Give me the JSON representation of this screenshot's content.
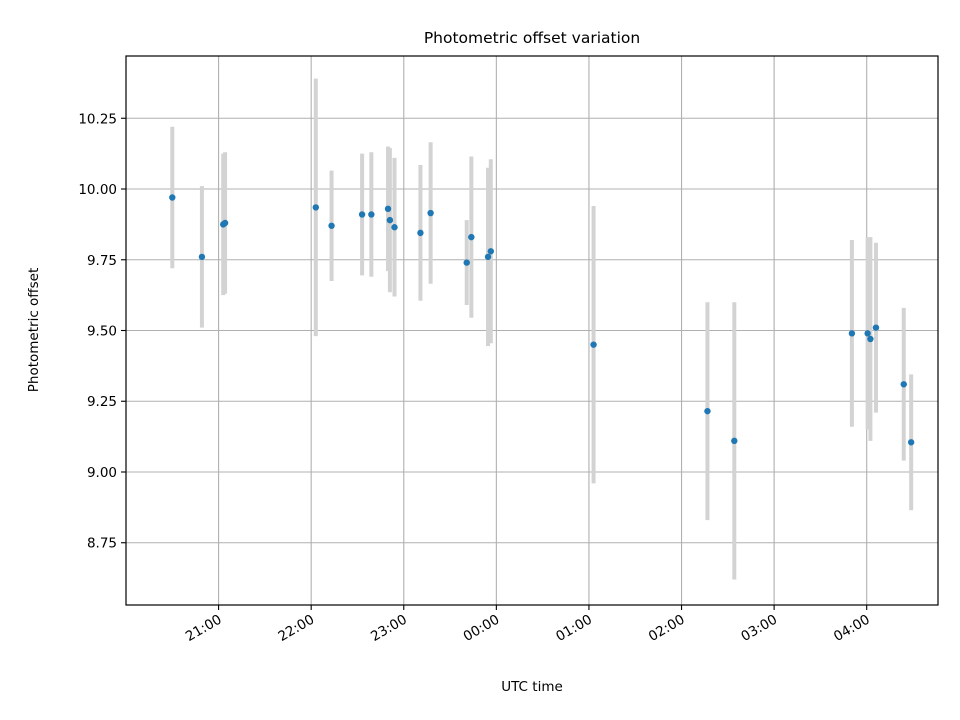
{
  "chart_data": {
    "type": "scatter",
    "title": "Photometric offset variation",
    "xlabel": "UTC time",
    "ylabel": "Photometric offset",
    "x_unit": "hours after 00:00 UTC",
    "xlim": [
      -4.0,
      4.77
    ],
    "ylim": [
      8.53,
      10.47
    ],
    "grid": true,
    "x_ticks": [
      {
        "value": -3.0,
        "label": "21:00"
      },
      {
        "value": -2.0,
        "label": "22:00"
      },
      {
        "value": -1.0,
        "label": "23:00"
      },
      {
        "value": 0.0,
        "label": "00:00"
      },
      {
        "value": 1.0,
        "label": "01:00"
      },
      {
        "value": 2.0,
        "label": "02:00"
      },
      {
        "value": 3.0,
        "label": "03:00"
      },
      {
        "value": 4.0,
        "label": "04:00"
      }
    ],
    "y_ticks": [
      {
        "value": 8.75,
        "label": "8.75"
      },
      {
        "value": 9.0,
        "label": "9.00"
      },
      {
        "value": 9.25,
        "label": "9.25"
      },
      {
        "value": 9.5,
        "label": "9.50"
      },
      {
        "value": 9.75,
        "label": "9.75"
      },
      {
        "value": 10.0,
        "label": "10.00"
      },
      {
        "value": 10.25,
        "label": "10.25"
      }
    ],
    "points": [
      {
        "x": -3.5,
        "y": 9.97,
        "err": 0.25
      },
      {
        "x": -3.18,
        "y": 9.76,
        "err": 0.25
      },
      {
        "x": -2.95,
        "y": 9.875,
        "err": 0.25
      },
      {
        "x": -2.93,
        "y": 9.88,
        "err": 0.25
      },
      {
        "x": -1.95,
        "y": 9.935,
        "err": 0.455
      },
      {
        "x": -1.78,
        "y": 9.87,
        "err": 0.195
      },
      {
        "x": -1.45,
        "y": 9.91,
        "err": 0.215
      },
      {
        "x": -1.35,
        "y": 9.91,
        "err": 0.22
      },
      {
        "x": -1.17,
        "y": 9.93,
        "err": 0.22
      },
      {
        "x": -1.15,
        "y": 9.89,
        "err": 0.255
      },
      {
        "x": -1.1,
        "y": 9.865,
        "err": 0.245
      },
      {
        "x": -0.82,
        "y": 9.845,
        "err": 0.24
      },
      {
        "x": -0.71,
        "y": 9.915,
        "err": 0.25
      },
      {
        "x": -0.32,
        "y": 9.74,
        "err": 0.15
      },
      {
        "x": -0.27,
        "y": 9.83,
        "err": 0.285
      },
      {
        "x": -0.09,
        "y": 9.76,
        "err": 0.315
      },
      {
        "x": -0.06,
        "y": 9.78,
        "err": 0.325
      },
      {
        "x": 1.05,
        "y": 9.45,
        "err": 0.49
      },
      {
        "x": 2.28,
        "y": 9.215,
        "err": 0.385
      },
      {
        "x": 2.57,
        "y": 9.11,
        "err": 0.49
      },
      {
        "x": 3.84,
        "y": 9.49,
        "err": 0.33
      },
      {
        "x": 4.01,
        "y": 9.49,
        "err": 0.34
      },
      {
        "x": 4.04,
        "y": 9.47,
        "err": 0.36
      },
      {
        "x": 4.1,
        "y": 9.51,
        "err": 0.3
      },
      {
        "x": 4.4,
        "y": 9.31,
        "err": 0.27
      },
      {
        "x": 4.48,
        "y": 9.105,
        "err": 0.24
      }
    ],
    "point_color": "#1f77b4",
    "errorbar_color": "#d3d3d3",
    "grid_color": "#b0b0b0"
  }
}
